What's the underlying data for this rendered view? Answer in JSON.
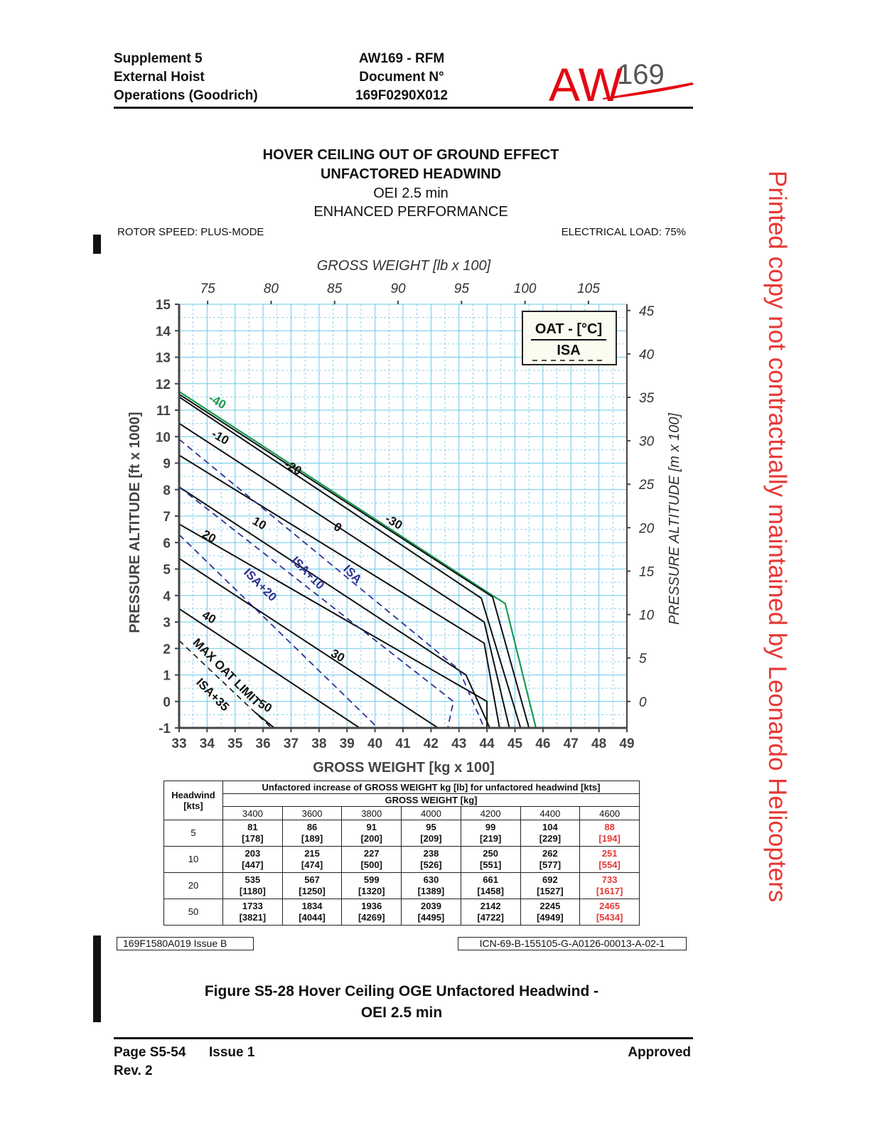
{
  "header": {
    "left": [
      "Supplement 5",
      "External Hoist",
      "Operations (Goodrich)"
    ],
    "center": [
      "AW169 - RFM",
      "Document N°",
      "169F0290X012"
    ],
    "logo_prefix": "AW",
    "logo_suffix": "169"
  },
  "watermark": "Printed copy not contractually maintained by Leonardo Helicopters",
  "title": {
    "line1": "HOVER CEILING OUT OF GROUND EFFECT",
    "line2": "UNFACTORED HEADWIND",
    "line3": "OEI 2.5 min",
    "line4": "ENHANCED PERFORMANCE"
  },
  "rotor_speed": "ROTOR SPEED: PLUS-MODE",
  "electrical_load": "ELECTRICAL LOAD: 75%",
  "chart_data": {
    "type": "line",
    "xlabel": "GROSS WEIGHT [kg x 100]",
    "x2label": "GROSS WEIGHT [lb x 100]",
    "ylabel": "PRESSURE ALTITUDE [ft x 1000]",
    "y2label": "PRESSURE ALTITUDE [m x 100]",
    "xlim": [
      33,
      49
    ],
    "ylim": [
      -1,
      15
    ],
    "x_ticks": [
      33,
      34,
      35,
      36,
      37,
      38,
      39,
      40,
      41,
      42,
      43,
      44,
      45,
      46,
      47,
      48,
      49
    ],
    "y_ticks": [
      -1,
      0,
      1,
      2,
      3,
      4,
      5,
      6,
      7,
      8,
      9,
      10,
      11,
      12,
      13,
      14,
      15
    ],
    "x2_ticks": [
      75,
      80,
      85,
      90,
      95,
      100,
      105
    ],
    "y2_ticks": [
      0,
      5,
      10,
      15,
      20,
      25,
      30,
      35,
      40,
      45
    ],
    "grid": true,
    "legend": {
      "title": "OAT - [°C]",
      "entry": "ISA",
      "position": "top-right"
    },
    "colors": {
      "grid": "#6ac8ea",
      "oat": "#111111",
      "minus40": "#1a9a50",
      "isa": "#2e3192",
      "axis": "#444444"
    },
    "series": [
      {
        "name": "-40",
        "style": "green",
        "x": [
          33,
          44.2,
          44.65,
          45.75
        ],
        "y": [
          11.7,
          4.0,
          3.7,
          -1
        ]
      },
      {
        "name": "-30",
        "style": "solid",
        "x": [
          33,
          44.2,
          45.5
        ],
        "y": [
          11.6,
          3.95,
          -1
        ]
      },
      {
        "name": "-20",
        "style": "solid",
        "x": [
          33,
          43.8,
          45.2
        ],
        "y": [
          11.5,
          3.9,
          -1
        ]
      },
      {
        "name": "-10",
        "style": "solid",
        "x": [
          33,
          43.9,
          44.8
        ],
        "y": [
          10.5,
          3.0,
          -1
        ]
      },
      {
        "name": "0",
        "style": "solid",
        "x": [
          33,
          43.9,
          44.45
        ],
        "y": [
          9.3,
          2.2,
          -1
        ]
      },
      {
        "name": "10",
        "style": "solid",
        "x": [
          33,
          43.25,
          44.1
        ],
        "y": [
          8.1,
          1.0,
          -1
        ]
      },
      {
        "name": "20",
        "style": "solid",
        "x": [
          33,
          44.0,
          44.0
        ],
        "y": [
          6.7,
          0.0,
          -1
        ]
      },
      {
        "name": "30",
        "style": "solid",
        "x": [
          33,
          42.25
        ],
        "y": [
          5.4,
          -1
        ]
      },
      {
        "name": "40",
        "style": "solid",
        "x": [
          33,
          39.45
        ],
        "y": [
          3.5,
          -1
        ]
      },
      {
        "name": "50",
        "style": "solid",
        "x": [
          35.7,
          36.4
        ],
        "y": [
          -0.4,
          -1
        ]
      },
      {
        "name": "ISA",
        "style": "dashed",
        "x": [
          33,
          43.0,
          43.9
        ],
        "y": [
          9.9,
          1.2,
          -1
        ]
      },
      {
        "name": "ISA+10",
        "style": "dashed",
        "x": [
          33,
          42.8,
          42.6
        ],
        "y": [
          8.1,
          0.0,
          -1
        ]
      },
      {
        "name": "ISA+20",
        "style": "dashed",
        "x": [
          33,
          40.1
        ],
        "y": [
          6.3,
          -1
        ]
      },
      {
        "name": "MAX OAT LIMIT ISA+35",
        "style": "dashed-black",
        "x": [
          33,
          36.3
        ],
        "y": [
          2.3,
          -1
        ]
      }
    ],
    "curve_labels": [
      {
        "text": "-40",
        "x": 34.3,
        "y": 11.2,
        "angle": 30,
        "color": "green"
      },
      {
        "text": "-30",
        "x": 40.6,
        "y": 6.65,
        "angle": 30,
        "color": "black"
      },
      {
        "text": "-20",
        "x": 37.0,
        "y": 8.7,
        "angle": 30,
        "color": "black"
      },
      {
        "text": "-10",
        "x": 34.4,
        "y": 9.85,
        "angle": 30,
        "color": "black"
      },
      {
        "text": "0",
        "x": 38.6,
        "y": 6.45,
        "angle": 30,
        "color": "black"
      },
      {
        "text": "10",
        "x": 35.8,
        "y": 6.6,
        "angle": 30,
        "color": "black"
      },
      {
        "text": "20",
        "x": 34.0,
        "y": 6.1,
        "angle": 30,
        "color": "black"
      },
      {
        "text": "30",
        "x": 38.6,
        "y": 1.6,
        "angle": 30,
        "color": "black"
      },
      {
        "text": "40",
        "x": 34.0,
        "y": 3.05,
        "angle": 30,
        "color": "black"
      },
      {
        "text": "50",
        "x": 36.0,
        "y": -0.3,
        "angle": 30,
        "color": "black"
      },
      {
        "text": "ISA",
        "x": 39.1,
        "y": 4.7,
        "angle": 45,
        "color": "navy"
      },
      {
        "text": "ISA+10",
        "x": 37.5,
        "y": 4.75,
        "angle": 45,
        "color": "navy"
      },
      {
        "text": "ISA+20",
        "x": 35.8,
        "y": 4.3,
        "angle": 45,
        "color": "navy"
      },
      {
        "text": "MAX OAT LIMIT",
        "x": 34.6,
        "y": 1.0,
        "angle": 45,
        "color": "black"
      },
      {
        "text": "ISA+35",
        "x": 34.1,
        "y": 0.15,
        "angle": 45,
        "color": "black"
      }
    ]
  },
  "table": {
    "col0_header": "Headwind [kts]",
    "title": "Unfactored increase of GROSS WEIGHT kg [lb] for unfactored headwind [kts]",
    "subtitle": "GROSS WEIGHT [kg]",
    "weights": [
      "3400",
      "3600",
      "3800",
      "4000",
      "4200",
      "4400",
      "4600"
    ],
    "rows": [
      {
        "kts": "5",
        "kg": [
          "81",
          "86",
          "91",
          "95",
          "99",
          "104",
          "88"
        ],
        "lb": [
          "[178]",
          "[189]",
          "[200]",
          "[209]",
          "[219]",
          "[229]",
          "[194]"
        ]
      },
      {
        "kts": "10",
        "kg": [
          "203",
          "215",
          "227",
          "238",
          "250",
          "262",
          "251"
        ],
        "lb": [
          "[447]",
          "[474]",
          "[500]",
          "[526]",
          "[551]",
          "[577]",
          "[554]"
        ]
      },
      {
        "kts": "20",
        "kg": [
          "535",
          "567",
          "599",
          "630",
          "661",
          "692",
          "733"
        ],
        "lb": [
          "[1180]",
          "[1250]",
          "[1320]",
          "[1389]",
          "[1458]",
          "[1527]",
          "[1617]"
        ]
      },
      {
        "kts": "50",
        "kg": [
          "1733",
          "1834",
          "1936",
          "2039",
          "2142",
          "2245",
          "2465"
        ],
        "lb": [
          "[3821]",
          "[4044]",
          "[4269]",
          "[4495]",
          "[4722]",
          "[4949]",
          "[5434]"
        ]
      }
    ]
  },
  "ref_left": "169F1580A019 Issue B",
  "ref_right": "ICN-69-B-155105-G-A0126-00013-A-02-1",
  "figure_caption": {
    "line1": "Figure S5-28  Hover Ceiling OGE Unfactored Headwind -",
    "line2": "OEI 2.5 min"
  },
  "footer": {
    "page": "Page S5-54",
    "issue": "Issue 1",
    "rev": "Rev. 2",
    "approved": "Approved"
  }
}
